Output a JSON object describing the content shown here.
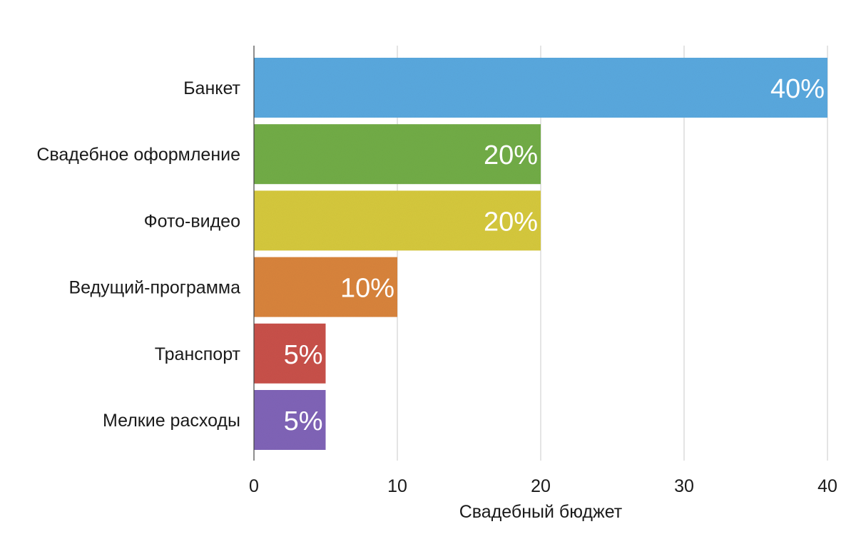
{
  "chart_data": {
    "type": "bar",
    "orientation": "horizontal",
    "categories": [
      "Банкет",
      "Свадебное оформление",
      "Фото-видео",
      "Ведущий-программа",
      "Транспорт",
      "Мелкие расходы"
    ],
    "values": [
      40,
      20,
      20,
      10,
      5,
      5
    ],
    "data_labels": [
      "40%",
      "20%",
      "20%",
      "10%",
      "5%",
      "5%"
    ],
    "colors": [
      "#5aa9df",
      "#72ad47",
      "#d6c93d",
      "#d9843c",
      "#c9514a",
      "#8064b8"
    ],
    "xlabel": "Свадебный бюджет",
    "ylabel": "",
    "xlim": [
      0,
      40
    ],
    "xticks": [
      0,
      10,
      20,
      30,
      40
    ],
    "xtick_labels": [
      "0",
      "10",
      "20",
      "30",
      "40"
    ],
    "grid": true,
    "legend": "none"
  }
}
